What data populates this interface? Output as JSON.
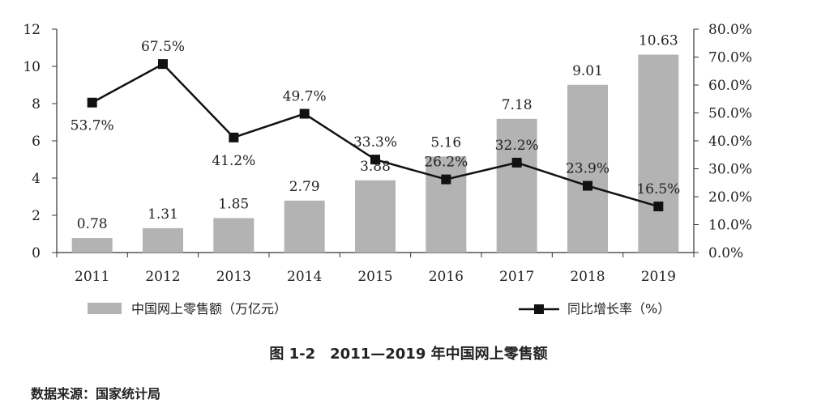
{
  "chart_data": {
    "type": "bar",
    "categories": [
      "2011",
      "2012",
      "2013",
      "2014",
      "2015",
      "2016",
      "2017",
      "2018",
      "2019"
    ],
    "series": [
      {
        "name": "中国网上零售额（万亿元）",
        "type": "bar",
        "axis": "left",
        "values": [
          0.78,
          1.31,
          1.85,
          2.79,
          3.88,
          5.16,
          7.18,
          9.01,
          10.63
        ],
        "labels": [
          "0.78",
          "1.31",
          "1.85",
          "2.79",
          "3.88",
          "5.16",
          "7.18",
          "9.01",
          "10.63"
        ],
        "color": "#b3b3b3"
      },
      {
        "name": "同比增长率（%）",
        "type": "line",
        "axis": "right",
        "values": [
          53.7,
          67.5,
          41.2,
          49.7,
          33.3,
          26.2,
          32.2,
          23.9,
          16.5
        ],
        "labels": [
          "53.7%",
          "67.5%",
          "41.2%",
          "49.7%",
          "33.3%",
          "26.2%",
          "32.2%",
          "23.9%",
          "16.5%"
        ],
        "color": "#111111"
      }
    ],
    "y_left": {
      "ylim": [
        0,
        12
      ],
      "ticks": [
        "0",
        "2",
        "4",
        "6",
        "8",
        "10",
        "12"
      ]
    },
    "y_right": {
      "ylim": [
        0,
        80
      ],
      "ticks": [
        "0.0%",
        "10.0%",
        "20.0%",
        "30.0%",
        "40.0%",
        "50.0%",
        "60.0%",
        "70.0%",
        "80.0%"
      ]
    },
    "legend_position": "bottom",
    "grid": false
  },
  "caption": "图 1-2　2011—2019 年中国网上零售额",
  "source": "数据来源：国家统计局"
}
